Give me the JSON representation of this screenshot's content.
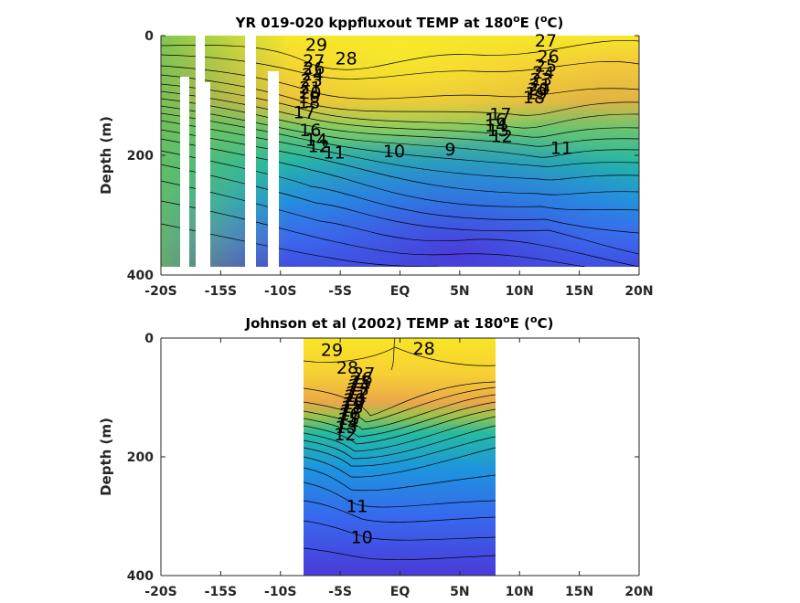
{
  "chart_data": [
    {
      "type": "heatmap",
      "title": "YR 019-020 kppfluxout TEMP at 180",
      "title_suffix": "E (",
      "title_unit": "C)",
      "degree_symbol": "o",
      "ylabel": "Depth (m)",
      "xlim": [
        -20,
        20
      ],
      "ylim": [
        400,
        0
      ],
      "x_tick_values": [
        -20,
        -15,
        -10,
        -5,
        0,
        5,
        10,
        15,
        20
      ],
      "x_tick_labels": [
        "-20S",
        "-15S",
        "-10S",
        "-5S",
        "EQ",
        "5N",
        "10N",
        "15N",
        "20N"
      ],
      "y_tick_values": [
        0,
        200,
        400
      ],
      "y_tick_labels": [
        "0",
        "200",
        "400"
      ],
      "data_x_range": [
        -20,
        20
      ],
      "data_depth_max": 385,
      "missing_lat_bands": [
        [
          -18.2,
          -17.5
        ],
        [
          -16.8,
          -16.0
        ],
        [
          -12.4,
          -11.6
        ],
        [
          -10.6,
          -9.8
        ]
      ],
      "contour_labels": [
        {
          "text": "29",
          "lat": -7.0,
          "depth": 25
        },
        {
          "text": "28",
          "lat": -4.5,
          "depth": 48
        },
        {
          "text": "27",
          "lat": -7.2,
          "depth": 52
        },
        {
          "text": "27",
          "lat": 12.2,
          "depth": 18
        },
        {
          "text": "26",
          "lat": 12.4,
          "depth": 45
        },
        {
          "text": "25",
          "lat": 12.2,
          "depth": 60
        },
        {
          "text": "24",
          "lat": 12.0,
          "depth": 72
        },
        {
          "text": "23",
          "lat": 11.8,
          "depth": 83
        },
        {
          "text": "26",
          "lat": -7.2,
          "depth": 64
        },
        {
          "text": "24",
          "lat": -7.3,
          "depth": 75
        },
        {
          "text": "23",
          "lat": -7.4,
          "depth": 85
        },
        {
          "text": "21",
          "lat": -7.5,
          "depth": 97
        },
        {
          "text": "20",
          "lat": -7.5,
          "depth": 105
        },
        {
          "text": "19",
          "lat": -7.6,
          "depth": 113
        },
        {
          "text": "18",
          "lat": -7.6,
          "depth": 121
        },
        {
          "text": "17",
          "lat": -8.0,
          "depth": 138
        },
        {
          "text": "16",
          "lat": -7.5,
          "depth": 168
        },
        {
          "text": "14",
          "lat": -7.0,
          "depth": 184
        },
        {
          "text": "12",
          "lat": -6.8,
          "depth": 195
        },
        {
          "text": "11",
          "lat": -5.5,
          "depth": 205
        },
        {
          "text": "10",
          "lat": -0.5,
          "depth": 203
        },
        {
          "text": "9",
          "lat": 4.2,
          "depth": 200
        },
        {
          "text": "11",
          "lat": 13.5,
          "depth": 198
        },
        {
          "text": "12",
          "lat": 8.5,
          "depth": 178
        },
        {
          "text": "13",
          "lat": 8.2,
          "depth": 168
        },
        {
          "text": "14",
          "lat": 8.0,
          "depth": 160
        },
        {
          "text": "16",
          "lat": 8.0,
          "depth": 150
        },
        {
          "text": "17",
          "lat": 8.4,
          "depth": 141
        },
        {
          "text": "18",
          "lat": 11.2,
          "depth": 113
        },
        {
          "text": "19",
          "lat": 11.4,
          "depth": 106
        },
        {
          "text": "20",
          "lat": 11.6,
          "depth": 99
        },
        {
          "text": "21",
          "lat": 11.7,
          "depth": 92
        }
      ]
    },
    {
      "type": "heatmap",
      "title": "Johnson et al (2002) TEMP at 180",
      "title_suffix": "E (",
      "title_unit": "C)",
      "degree_symbol": "o",
      "ylabel": "Depth (m)",
      "xlim": [
        -20,
        20
      ],
      "ylim": [
        400,
        0
      ],
      "x_tick_values": [
        -20,
        -15,
        -10,
        -5,
        0,
        5,
        10,
        15,
        20
      ],
      "x_tick_labels": [
        "-20S",
        "-15S",
        "-10S",
        "-5S",
        "EQ",
        "5N",
        "10N",
        "15N",
        "20N"
      ],
      "y_tick_values": [
        0,
        200,
        400
      ],
      "y_tick_labels": [
        "0",
        "200",
        "400"
      ],
      "data_x_range": [
        -8,
        8
      ],
      "data_depth_max": 400,
      "contour_labels": [
        {
          "text": "29",
          "lat": -5.7,
          "depth": 30
        },
        {
          "text": "28",
          "lat": 2.0,
          "depth": 28
        },
        {
          "text": "28",
          "lat": -4.4,
          "depth": 60
        },
        {
          "text": "27",
          "lat": -3.0,
          "depth": 70
        },
        {
          "text": "26",
          "lat": -3.2,
          "depth": 78
        },
        {
          "text": "25",
          "lat": -3.3,
          "depth": 84
        },
        {
          "text": "24",
          "lat": -3.4,
          "depth": 90
        },
        {
          "text": "23",
          "lat": -3.5,
          "depth": 96
        },
        {
          "text": "22",
          "lat": -3.6,
          "depth": 102
        },
        {
          "text": "21",
          "lat": -3.7,
          "depth": 108
        },
        {
          "text": "20",
          "lat": -3.8,
          "depth": 114
        },
        {
          "text": "19",
          "lat": -3.9,
          "depth": 120
        },
        {
          "text": "18",
          "lat": -4.0,
          "depth": 126
        },
        {
          "text": "17",
          "lat": -4.1,
          "depth": 132
        },
        {
          "text": "16",
          "lat": -4.2,
          "depth": 138
        },
        {
          "text": "15",
          "lat": -4.3,
          "depth": 146
        },
        {
          "text": "14",
          "lat": -4.4,
          "depth": 154
        },
        {
          "text": "13",
          "lat": -4.5,
          "depth": 160
        },
        {
          "text": "12",
          "lat": -4.6,
          "depth": 172
        },
        {
          "text": "11",
          "lat": -3.6,
          "depth": 293
        },
        {
          "text": "10",
          "lat": -3.2,
          "depth": 345
        }
      ]
    }
  ]
}
